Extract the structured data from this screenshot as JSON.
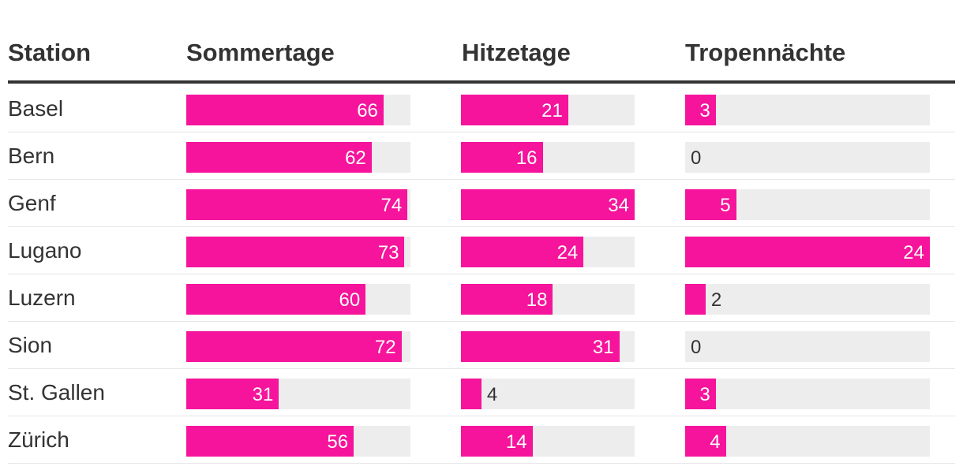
{
  "header": {
    "station": "Station",
    "sommertage": "Sommertage",
    "hitzetage": "Hitzetage",
    "tropennaechte": "Tropennächte"
  },
  "colors": {
    "bar": "#f5149b",
    "track": "#ededed",
    "text": "#333333"
  },
  "chart_data": {
    "type": "table",
    "columns": [
      "Station",
      "Sommertage",
      "Hitzetage",
      "Tropennächte"
    ],
    "column_max": {
      "sommertage": 75,
      "hitzetage": 34,
      "tropennaechte": 24
    },
    "rows": [
      {
        "station": "Basel",
        "sommertage": 66,
        "hitzetage": 21,
        "tropennaechte": 3
      },
      {
        "station": "Bern",
        "sommertage": 62,
        "hitzetage": 16,
        "tropennaechte": 0
      },
      {
        "station": "Genf",
        "sommertage": 74,
        "hitzetage": 34,
        "tropennaechte": 5
      },
      {
        "station": "Lugano",
        "sommertage": 73,
        "hitzetage": 24,
        "tropennaechte": 24
      },
      {
        "station": "Luzern",
        "sommertage": 60,
        "hitzetage": 18,
        "tropennaechte": 2
      },
      {
        "station": "Sion",
        "sommertage": 72,
        "hitzetage": 31,
        "tropennaechte": 0
      },
      {
        "station": "St. Gallen",
        "sommertage": 31,
        "hitzetage": 4,
        "tropennaechte": 3
      },
      {
        "station": "Zürich",
        "sommertage": 56,
        "hitzetage": 14,
        "tropennaechte": 4
      }
    ]
  }
}
